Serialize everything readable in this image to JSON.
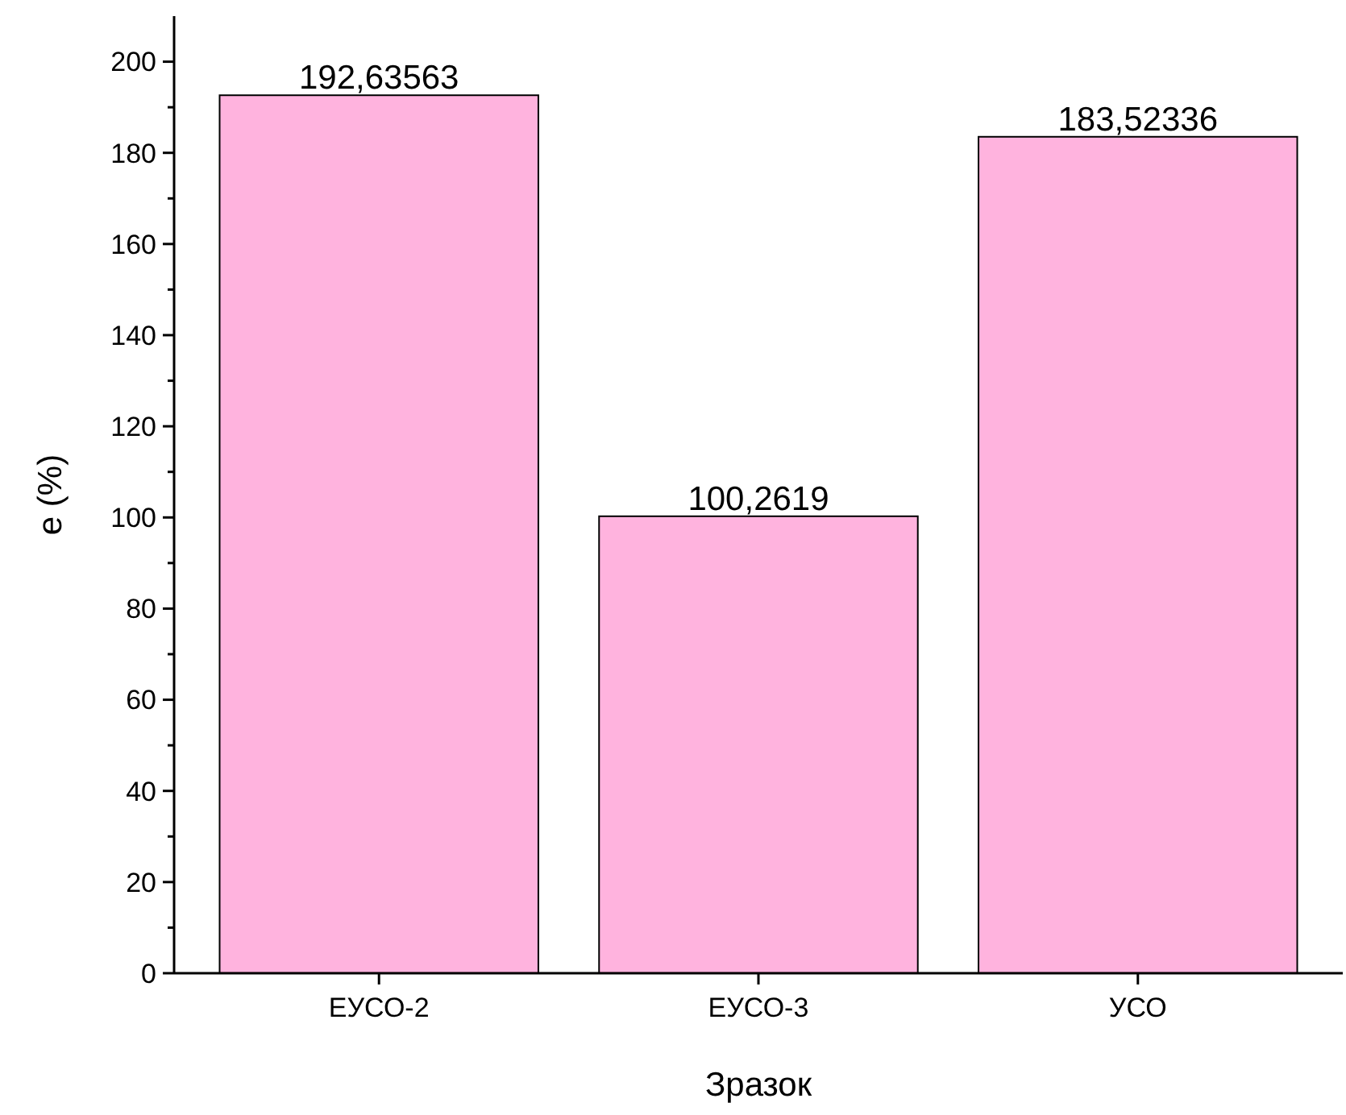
{
  "chart_data": {
    "type": "bar",
    "xlabel": "Зразок",
    "ylabel": "e (%)",
    "categories": [
      "ЕУСО-2",
      "ЕУСО-3",
      "УСО"
    ],
    "values": [
      192.63563,
      100.2619,
      183.52336
    ],
    "value_labels": [
      "192,63563",
      "100,2619",
      "183,52336"
    ],
    "color": "#ffb3de",
    "ylim": [
      0,
      210
    ],
    "yticks": [
      0,
      {
        "value": 10,
        "label": null
      },
      20,
      {
        "value": 30,
        "label": null
      },
      40,
      {
        "value": 50,
        "label": null
      },
      60,
      {
        "value": 70,
        "label": null
      },
      80,
      {
        "value": 90,
        "label": null
      },
      100,
      {
        "value": 110,
        "label": null
      },
      120,
      {
        "value": 130,
        "label": null
      },
      140,
      {
        "value": 150,
        "label": null
      },
      160,
      {
        "value": 170,
        "label": null
      },
      180,
      {
        "value": 190,
        "label": null
      },
      200
    ],
    "grid": false
  }
}
